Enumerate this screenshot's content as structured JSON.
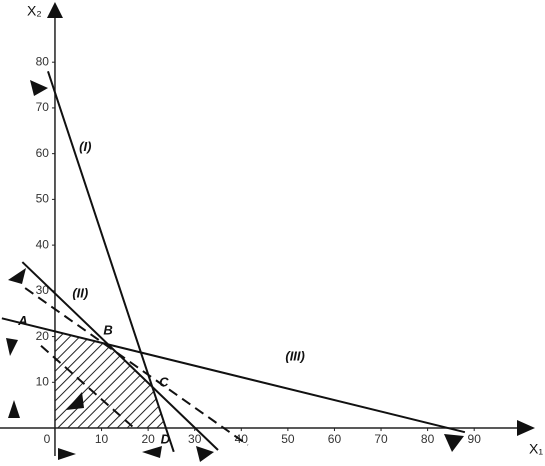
{
  "chart_data": {
    "type": "line",
    "x_label": "X₁",
    "y_label": "X₂",
    "xlim": [
      -11.8,
      105.2
    ],
    "ylim": [
      -8.3,
      93.6
    ],
    "xticks": [
      0,
      10,
      20,
      30,
      40,
      50,
      60,
      70,
      80,
      90
    ],
    "yticks": [
      10,
      20,
      30,
      40,
      50,
      60,
      70,
      80
    ],
    "series": [
      {
        "name": "(I)",
        "color": "#111111",
        "dashed": false,
        "x": [
          -1.5,
          25.5
        ],
        "values": [
          78,
          -5.2
        ]
      },
      {
        "name": "(II)",
        "color": "#111111",
        "dashed": false,
        "x": [
          -7,
          35
        ],
        "values": [
          36.3,
          -4.8
        ]
      },
      {
        "name": "(III)",
        "color": "#111111",
        "dashed": false,
        "x": [
          -11.4,
          88
        ],
        "values": [
          24,
          -0.9
        ]
      },
      {
        "color": "#111111",
        "dashed": true,
        "x": [
          -6.4,
          41.4
        ],
        "values": [
          30.6,
          -3.7
        ]
      },
      {
        "color": "#111111",
        "dashed": true,
        "x": [
          -3,
          17
        ],
        "values": [
          18,
          0
        ]
      }
    ],
    "points": [
      {
        "label": "A",
        "x": 0,
        "y": 21.1
      },
      {
        "label": "B",
        "x": 11.4,
        "y": 18.2
      },
      {
        "label": "C",
        "x": 20.8,
        "y": 9
      },
      {
        "label": "D",
        "x": 23.7,
        "y": 0
      }
    ]
  }
}
